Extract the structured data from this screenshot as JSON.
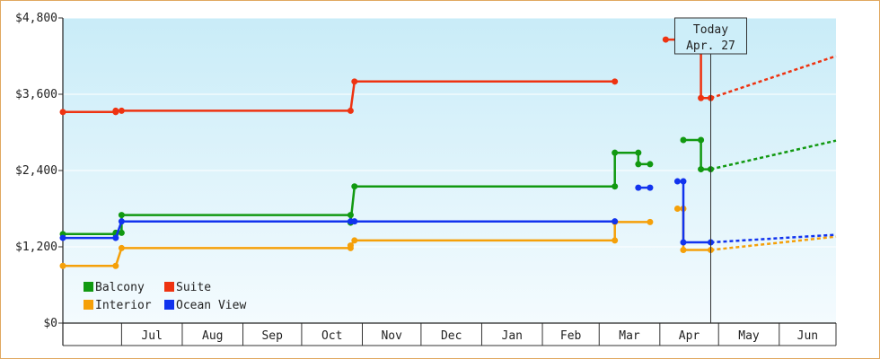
{
  "chart_data": {
    "type": "line",
    "title": "",
    "xlabel": "",
    "ylabel": "",
    "ylim": [
      0,
      4800
    ],
    "yticks": [
      0,
      1200,
      2400,
      3600,
      4800
    ],
    "ytick_labels": [
      "$0",
      "$1,200",
      "$2,400",
      "$3,600",
      "$4,800"
    ],
    "xlim": [
      "2019-06-01",
      "2020-06-30"
    ],
    "xtick_labels": [
      "Jul",
      "Aug",
      "Sep",
      "Oct",
      "Nov",
      "Dec",
      "Jan",
      "Feb",
      "Mar",
      "Apr",
      "May",
      "Jun"
    ],
    "today": {
      "line1": "Today",
      "line2": "Apr. 27",
      "date": "2020-04-27"
    },
    "grid": true,
    "legend_position": "bottom-left",
    "series": [
      {
        "name": "Balcony",
        "color": "#119911",
        "segments": [
          [
            [
              "2019-06-01",
              1400
            ],
            [
              "2019-06-28",
              1400
            ],
            [
              "2019-06-28",
              1420
            ],
            [
              "2019-07-01",
              1420
            ],
            [
              "2019-07-01",
              1700
            ],
            [
              "2019-10-26",
              1700
            ],
            [
              "2019-10-26",
              1580
            ],
            [
              "2019-10-28",
              2150
            ],
            [
              "2020-03-09",
              2150
            ],
            [
              "2020-03-09",
              2680
            ],
            [
              "2020-03-21",
              2680
            ],
            [
              "2020-03-21",
              2500
            ],
            [
              "2020-03-27",
              2500
            ]
          ],
          [
            [
              "2020-04-13",
              2880
            ],
            [
              "2020-04-22",
              2880
            ],
            [
              "2020-04-22",
              2420
            ],
            [
              "2020-04-27",
              2420
            ]
          ]
        ],
        "forecast": [
          [
            "2020-04-27",
            2420
          ],
          [
            "2020-06-30",
            2870
          ]
        ]
      },
      {
        "name": "Suite",
        "color": "#ee3311",
        "segments": [
          [
            [
              "2019-06-01",
              3320
            ],
            [
              "2019-06-28",
              3320
            ],
            [
              "2019-06-28",
              3340
            ],
            [
              "2019-07-01",
              3340
            ],
            [
              "2019-10-26",
              3340
            ],
            [
              "2019-10-28",
              3800
            ],
            [
              "2020-03-09",
              3800
            ]
          ],
          [
            [
              "2020-04-04",
              4460
            ],
            [
              "2020-04-22",
              4460
            ],
            [
              "2020-04-22",
              3540
            ],
            [
              "2020-04-27",
              3540
            ]
          ]
        ],
        "forecast": [
          [
            "2020-04-27",
            3540
          ],
          [
            "2020-06-30",
            4200
          ]
        ]
      },
      {
        "name": "Interior",
        "color": "#f5a009",
        "segments": [
          [
            [
              "2019-06-01",
              900
            ],
            [
              "2019-06-28",
              900
            ],
            [
              "2019-07-01",
              1180
            ],
            [
              "2019-10-26",
              1180
            ],
            [
              "2019-10-26",
              1220
            ],
            [
              "2019-10-28",
              1300
            ],
            [
              "2020-03-09",
              1300
            ],
            [
              "2020-03-09",
              1590
            ],
            [
              "2020-03-27",
              1590
            ]
          ],
          [
            [
              "2020-04-10",
              1800
            ],
            [
              "2020-04-13",
              1800
            ],
            [
              "2020-04-13",
              1150
            ],
            [
              "2020-04-27",
              1150
            ]
          ]
        ],
        "forecast": [
          [
            "2020-04-27",
            1150
          ],
          [
            "2020-06-30",
            1360
          ]
        ]
      },
      {
        "name": "Ocean View",
        "color": "#1133ee",
        "segments": [
          [
            [
              "2019-06-01",
              1340
            ],
            [
              "2019-06-28",
              1340
            ],
            [
              "2019-07-01",
              1600
            ],
            [
              "2019-10-26",
              1600
            ],
            [
              "2019-10-28",
              1600
            ],
            [
              "2020-03-09",
              1600
            ]
          ],
          [
            [
              "2020-03-21",
              2130
            ],
            [
              "2020-03-27",
              2130
            ]
          ],
          [
            [
              "2020-04-10",
              2230
            ],
            [
              "2020-04-13",
              2230
            ],
            [
              "2020-04-13",
              1270
            ],
            [
              "2020-04-27",
              1270
            ]
          ]
        ],
        "forecast": [
          [
            "2020-04-27",
            1270
          ],
          [
            "2020-06-30",
            1390
          ]
        ]
      }
    ]
  }
}
